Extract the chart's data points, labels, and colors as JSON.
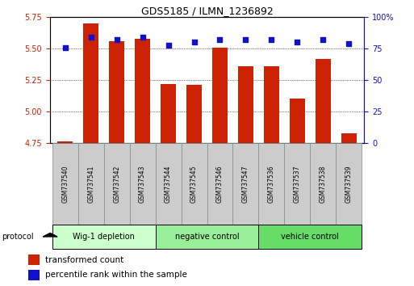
{
  "title": "GDS5185 / ILMN_1236892",
  "samples": [
    "GSM737540",
    "GSM737541",
    "GSM737542",
    "GSM737543",
    "GSM737544",
    "GSM737545",
    "GSM737546",
    "GSM737547",
    "GSM737536",
    "GSM737537",
    "GSM737538",
    "GSM737539"
  ],
  "transformed_count": [
    4.76,
    5.7,
    5.56,
    5.58,
    5.22,
    5.21,
    5.51,
    5.36,
    5.36,
    5.1,
    5.42,
    4.83
  ],
  "percentile_rank": [
    76,
    84,
    82,
    84,
    78,
    80,
    82,
    82,
    82,
    80,
    82,
    79
  ],
  "groups": [
    {
      "label": "Wig-1 depletion",
      "start": 0,
      "end": 3,
      "color": "#ccffcc"
    },
    {
      "label": "negative control",
      "start": 4,
      "end": 7,
      "color": "#99ee99"
    },
    {
      "label": "vehicle control",
      "start": 8,
      "end": 11,
      "color": "#66dd66"
    }
  ],
  "ylim_left": [
    4.75,
    5.75
  ],
  "ylim_right": [
    0,
    100
  ],
  "yticks_left": [
    4.75,
    5.0,
    5.25,
    5.5,
    5.75
  ],
  "yticks_right": [
    0,
    25,
    50,
    75,
    100
  ],
  "bar_color": "#cc2200",
  "dot_color": "#1111cc",
  "bar_width": 0.6,
  "label_box_color": "#cccccc",
  "label_box_edge": "#888888"
}
